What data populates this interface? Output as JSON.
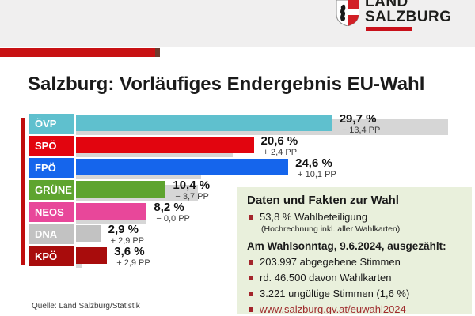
{
  "logo": {
    "line1": "LAND",
    "line2": "SALZBURG"
  },
  "title": "Salzburg: Vorläufiges Endergebnis EU-Wahl",
  "chart_data": {
    "type": "bar",
    "orientation": "horizontal",
    "title": "Salzburg: Vorläufiges Endergebnis EU-Wahl",
    "unit": "percent of votes",
    "categories": [
      "ÖVP",
      "SPÖ",
      "FPÖ",
      "GRÜNE",
      "NEOS",
      "DNA",
      "KPÖ"
    ],
    "values": [
      29.7,
      20.6,
      24.6,
      10.4,
      8.2,
      2.9,
      3.6
    ],
    "previous_values": [
      43.1,
      18.2,
      14.5,
      14.1,
      8.2,
      0.0,
      0.7
    ],
    "value_labels": [
      "29,7 %",
      "20,6 %",
      "24,6 %",
      "10,4 %",
      "8,2 %",
      "2,9 %",
      "3,6 %"
    ],
    "change_labels": [
      "− 13,4 PP",
      "+ 2,4 PP",
      "+ 10,1 PP",
      "− 3,7 PP",
      "− 0,0 PP",
      "+ 2,9 PP",
      "+ 2,9 PP"
    ],
    "colors": [
      "#5fc0ce",
      "#e2050f",
      "#1565ec",
      "#5ea42f",
      "#e8479a",
      "#c2c2c2",
      "#a80c0c"
    ],
    "comparison_color": "#d6d6d6",
    "xlim": [
      0,
      45
    ],
    "grid": false,
    "legend": false
  },
  "info_box": {
    "title": "Daten und Fakten zur Wahl",
    "turnout": "53,8 % Wahlbeteiligung",
    "turnout_note": "(Hochrechnung inkl. aller Wahlkarten)",
    "subheading": "Am Wahlsonntag, 9.6.2024, ausgezählt:",
    "bullets": [
      "203.997 abgegebene Stimmen",
      "rd. 46.500 davon Wahlkarten",
      "3.221 ungültige Stimmen  (1,6 %)"
    ],
    "link": "www.salzburg.gv.at/euwahl2024"
  },
  "source": "Quelle:  Land Salzburg/Statistik"
}
